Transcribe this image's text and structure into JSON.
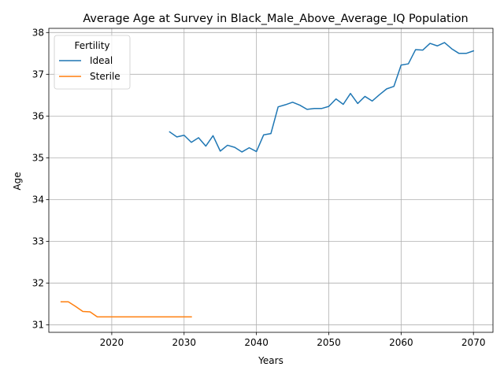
{
  "chart_data": {
    "type": "line",
    "title": "Average Age at Survey in Black_Male_Above_Average_IQ Population",
    "xlabel": "Years",
    "ylabel": "Age",
    "xlim": [
      2011.3,
      2072.7
    ],
    "ylim": [
      30.82,
      38.1
    ],
    "xticks": [
      2020,
      2030,
      2040,
      2050,
      2060,
      2070
    ],
    "yticks": [
      31,
      32,
      33,
      34,
      35,
      36,
      37,
      38
    ],
    "grid": true,
    "legend": {
      "title": "Fertility",
      "placement": "top-left"
    },
    "series": [
      {
        "name": "Ideal",
        "color": "#1f77b4",
        "x": [
          2028,
          2029,
          2030,
          2031,
          2032,
          2033,
          2034,
          2035,
          2036,
          2037,
          2038,
          2039,
          2040,
          2041,
          2042,
          2043,
          2044,
          2045,
          2046,
          2047,
          2048,
          2049,
          2050,
          2051,
          2052,
          2053,
          2054,
          2055,
          2056,
          2057,
          2058,
          2059,
          2060,
          2061,
          2062,
          2063,
          2064,
          2065,
          2066,
          2067,
          2068,
          2069,
          2070
        ],
        "y": [
          35.62,
          35.5,
          35.54,
          35.37,
          35.48,
          35.28,
          35.53,
          35.16,
          35.3,
          35.25,
          35.14,
          35.24,
          35.15,
          35.55,
          35.58,
          36.22,
          36.27,
          36.33,
          36.26,
          36.16,
          36.18,
          36.18,
          36.23,
          36.41,
          36.28,
          36.54,
          36.3,
          36.47,
          36.36,
          36.51,
          36.65,
          36.71,
          37.22,
          37.25,
          37.59,
          37.58,
          37.74,
          37.68,
          37.76,
          37.61,
          37.5,
          37.5,
          37.56
        ]
      },
      {
        "name": "Sterile",
        "color": "#ff7f0e",
        "x": [
          2013,
          2014,
          2015,
          2016,
          2017,
          2018,
          2019,
          2020,
          2021,
          2022,
          2023,
          2024,
          2025,
          2026,
          2027,
          2028,
          2029,
          2030,
          2031
        ],
        "y": [
          31.55,
          31.55,
          31.44,
          31.32,
          31.31,
          31.19,
          31.19,
          31.19,
          31.19,
          31.19,
          31.19,
          31.19,
          31.19,
          31.19,
          31.19,
          31.19,
          31.19,
          31.19,
          31.19
        ]
      }
    ]
  }
}
